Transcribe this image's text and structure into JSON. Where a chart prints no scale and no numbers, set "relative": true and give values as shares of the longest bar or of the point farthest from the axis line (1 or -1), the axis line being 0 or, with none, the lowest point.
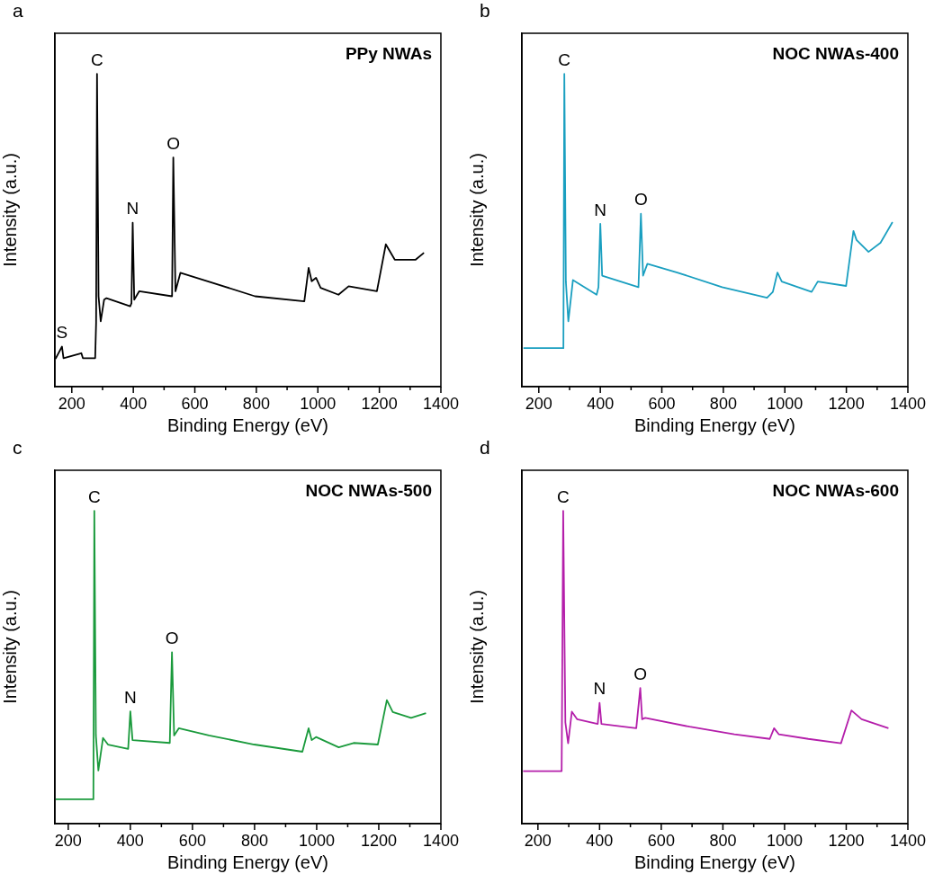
{
  "chart_data": [
    {
      "type": "line",
      "title": "PPy NWAs",
      "xlabel": "Binding Energy (eV)",
      "ylabel": "Intensity (a.u.)",
      "relative": true,
      "xlim": [
        145,
        1400
      ],
      "xticks": [
        200,
        {
          "value": 300,
          "label": null
        },
        400,
        {
          "value": 500,
          "label": null
        },
        600,
        {
          "value": 700,
          "label": null
        },
        800,
        {
          "value": 900,
          "label": null
        },
        1000,
        {
          "value": 1100,
          "label": null
        },
        1200,
        {
          "value": 1300,
          "label": null
        },
        1400
      ],
      "legend": false,
      "marker": "none",
      "annotations": [
        "a",
        {
          "text": "S",
          "x": 168,
          "y": 0.128
        },
        {
          "text": "C",
          "x": 282,
          "y": 1.0
        },
        {
          "text": "N",
          "x": 398,
          "y": 0.524
        },
        {
          "text": "O",
          "x": 530,
          "y": 0.733
        }
      ],
      "series": [
        {
          "color": "#000000",
          "x": [
            147,
            168,
            173,
            231,
            236,
            276,
            279,
            282,
            287,
            294,
            305,
            313,
            390,
            394,
            398,
            403,
            419,
            526,
            530,
            537,
            553,
            642,
            796,
            956,
            970,
            980,
            994,
            1009,
            1067,
            1100,
            1192,
            1221,
            1250,
            1318,
            1345
          ],
          "values": [
            0.089,
            0.128,
            0.091,
            0.107,
            0.091,
            0.091,
            0.203,
            1.0,
            0.289,
            0.209,
            0.278,
            0.283,
            0.257,
            0.267,
            0.524,
            0.278,
            0.305,
            0.289,
            0.733,
            0.305,
            0.364,
            0.337,
            0.289,
            0.273,
            0.38,
            0.337,
            0.348,
            0.316,
            0.294,
            0.321,
            0.305,
            0.455,
            0.406,
            0.406,
            0.428
          ]
        }
      ]
    },
    {
      "type": "line",
      "title": "NOC NWAs-400",
      "xlabel": "Binding Energy (eV)",
      "ylabel": "Intensity (a.u.)",
      "relative": true,
      "xlim": [
        145,
        1400
      ],
      "xticks": [
        200,
        {
          "value": 300,
          "label": null
        },
        400,
        {
          "value": 500,
          "label": null
        },
        600,
        {
          "value": 700,
          "label": null
        },
        800,
        {
          "value": 900,
          "label": null
        },
        1000,
        {
          "value": 1100,
          "label": null
        },
        1200,
        {
          "value": 1300,
          "label": null
        },
        1400
      ],
      "legend": false,
      "marker": "none",
      "annotations": [
        "b",
        {
          "text": "C",
          "x": 283,
          "y": 1.0
        },
        {
          "text": "N",
          "x": 400,
          "y": 0.521
        },
        {
          "text": "O",
          "x": 532,
          "y": 0.553
        }
      ],
      "series": [
        {
          "color": "#1a9fc0",
          "x": [
            150,
            280,
            283,
            288,
            296,
            311,
            388,
            394,
            400,
            406,
            524,
            532,
            539,
            553,
            650,
            796,
            942,
            961,
            976,
            990,
            1087,
            1107,
            1199,
            1223,
            1233,
            1272,
            1311,
            1350
          ],
          "values": [
            0.123,
            0.123,
            1.0,
            0.336,
            0.209,
            0.341,
            0.294,
            0.318,
            0.521,
            0.355,
            0.318,
            0.553,
            0.355,
            0.393,
            0.365,
            0.318,
            0.284,
            0.303,
            0.365,
            0.336,
            0.303,
            0.336,
            0.322,
            0.498,
            0.469,
            0.431,
            0.46,
            0.526
          ]
        }
      ]
    },
    {
      "type": "line",
      "title": "NOC NWAs-500",
      "xlabel": "Binding Energy (eV)",
      "ylabel": "Intensity (a.u.)",
      "relative": true,
      "xlim": [
        157,
        1400
      ],
      "xticks": [
        200,
        {
          "value": 300,
          "label": null
        },
        400,
        {
          "value": 500,
          "label": null
        },
        600,
        {
          "value": 700,
          "label": null
        },
        800,
        {
          "value": 900,
          "label": null
        },
        1000,
        {
          "value": 1100,
          "label": null
        },
        1200,
        {
          "value": 1300,
          "label": null
        },
        1400
      ],
      "legend": false,
      "marker": "none",
      "annotations": [
        "c",
        {
          "text": "C",
          "x": 284,
          "y": 1.0
        },
        {
          "text": "N",
          "x": 400,
          "y": 0.359
        },
        {
          "text": "O",
          "x": 534,
          "y": 0.548
        }
      ],
      "series": [
        {
          "color": "#1a9a3c",
          "x": [
            160,
            281,
            284,
            289,
            297,
            312,
            328,
            393,
            400,
            407,
            527,
            534,
            541,
            556,
            653,
            799,
            954,
            974,
            984,
            998,
            1071,
            1119,
            1197,
            1226,
            1245,
            1304,
            1352
          ],
          "values": [
            0.078,
            0.078,
            1.0,
            0.282,
            0.17,
            0.274,
            0.253,
            0.239,
            0.359,
            0.267,
            0.258,
            0.548,
            0.282,
            0.305,
            0.282,
            0.253,
            0.23,
            0.305,
            0.267,
            0.277,
            0.244,
            0.258,
            0.253,
            0.395,
            0.357,
            0.338,
            0.353
          ]
        }
      ]
    },
    {
      "type": "line",
      "title": "NOC NWAs-600",
      "xlabel": "Binding Energy (eV)",
      "ylabel": "Intensity (a.u.)",
      "relative": true,
      "xlim": [
        148,
        1400
      ],
      "xticks": [
        200,
        {
          "value": 300,
          "label": null
        },
        400,
        {
          "value": 500,
          "label": null
        },
        600,
        {
          "value": 700,
          "label": null
        },
        800,
        {
          "value": 900,
          "label": null
        },
        1000,
        {
          "value": 1100,
          "label": null
        },
        1200,
        {
          "value": 1300,
          "label": null
        },
        1400
      ],
      "legend": false,
      "marker": "none",
      "annotations": [
        "d",
        {
          "text": "C",
          "x": 282,
          "y": 1.0
        },
        {
          "text": "N",
          "x": 400,
          "y": 0.386
        },
        {
          "text": "O",
          "x": 532,
          "y": 0.434
        }
      ],
      "series": [
        {
          "color": "#b41eaa",
          "x": [
            152,
            277,
            282,
            289,
            298,
            310,
            327,
            394,
            400,
            406,
            519,
            532,
            538,
            548,
            692,
            837,
            952,
            966,
            981,
            1077,
            1183,
            1217,
            1250,
            1337
          ],
          "values": [
            0.168,
            0.168,
            1.0,
            0.324,
            0.257,
            0.358,
            0.334,
            0.319,
            0.386,
            0.319,
            0.305,
            0.434,
            0.334,
            0.338,
            0.31,
            0.286,
            0.271,
            0.305,
            0.286,
            0.271,
            0.257,
            0.362,
            0.334,
            0.305
          ]
        }
      ]
    }
  ]
}
